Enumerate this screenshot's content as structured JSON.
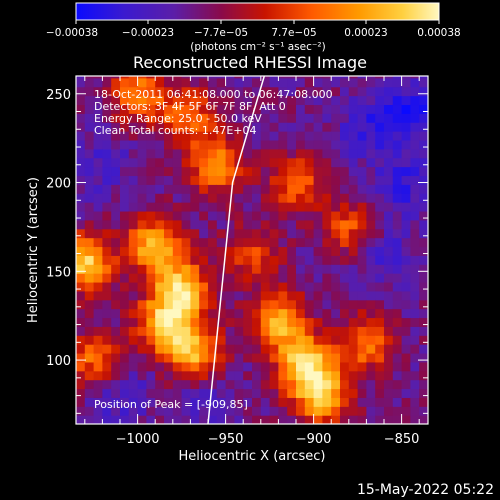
{
  "chart_data": {
    "type": "heatmap",
    "title": "Reconstructed RHESSI Image",
    "xlabel": "Heliocentric X (arcsec)",
    "ylabel": "Heliocentric Y (arcsec)",
    "xlim": [
      -1035,
      -835
    ],
    "ylim": [
      64,
      260
    ],
    "x_ticks": [
      -1000,
      -950,
      -900,
      -850
    ],
    "x_tick_labels": [
      "−1000",
      "−950",
      "−900",
      "−850"
    ],
    "y_ticks": [
      100,
      150,
      200,
      250
    ],
    "y_tick_labels": [
      "100",
      "150",
      "200",
      "250"
    ],
    "colorbar": {
      "range": [
        -0.00038,
        0.00038
      ],
      "tick_labels": [
        "−0.00038",
        "−0.00023",
        "−7.7e−05",
        "7.7e−05",
        "0.00023",
        "0.00038"
      ],
      "unit_text": "(photons cm⁻² s⁻¹ asec⁻²)",
      "colormap": [
        "#0a0aff",
        "#3a1ad0",
        "#5b1ea8",
        "#8a0a4a",
        "#c81400",
        "#ff5a00",
        "#ff9a00",
        "#ffd040",
        "#fff8c0"
      ]
    },
    "info_lines": [
      "18-Oct-2011 06:41:08.000 to 06:47:08.000",
      "Detectors: 3F 4F 5F 6F 7F 8F, Att 0",
      "Energy Range: 25.0 - 50.0 keV",
      "Clean    Total counts: 1.47E+04"
    ],
    "peak_label": "Position of Peak = [-909,85]",
    "peak_position": [
      -909,
      85
    ],
    "limb_line": [
      [
        -960,
        64
      ],
      [
        -946,
        200
      ],
      [
        -928,
        260
      ]
    ],
    "hot_regions": [
      {
        "x": -975,
        "y": 140,
        "strength": 0.95
      },
      {
        "x": -985,
        "y": 120,
        "strength": 0.85
      },
      {
        "x": -968,
        "y": 105,
        "strength": 0.8
      },
      {
        "x": -1030,
        "y": 155,
        "strength": 0.95
      },
      {
        "x": -990,
        "y": 165,
        "strength": 0.85
      },
      {
        "x": -955,
        "y": 210,
        "strength": 0.7
      },
      {
        "x": -972,
        "y": 238,
        "strength": 0.6
      },
      {
        "x": -1000,
        "y": 250,
        "strength": 0.65
      },
      {
        "x": -1025,
        "y": 100,
        "strength": 0.55
      },
      {
        "x": -905,
        "y": 98,
        "strength": 0.95
      },
      {
        "x": -895,
        "y": 80,
        "strength": 0.85
      },
      {
        "x": -920,
        "y": 122,
        "strength": 0.8
      },
      {
        "x": -870,
        "y": 110,
        "strength": 0.6
      },
      {
        "x": -910,
        "y": 200,
        "strength": 0.55
      },
      {
        "x": -880,
        "y": 175,
        "strength": 0.5
      },
      {
        "x": -935,
        "y": 160,
        "strength": 0.45
      }
    ],
    "cold_regions": [
      {
        "x": -845,
        "y": 240,
        "strength": 0.9
      },
      {
        "x": -850,
        "y": 200,
        "strength": 0.7
      },
      {
        "x": -860,
        "y": 160,
        "strength": 0.55
      },
      {
        "x": -870,
        "y": 230,
        "strength": 0.55
      },
      {
        "x": -1020,
        "y": 210,
        "strength": 0.45
      },
      {
        "x": -1010,
        "y": 80,
        "strength": 0.5
      },
      {
        "x": -960,
        "y": 78,
        "strength": 0.4
      }
    ]
  },
  "footer": {
    "date": "15-May-2022 05:22"
  }
}
